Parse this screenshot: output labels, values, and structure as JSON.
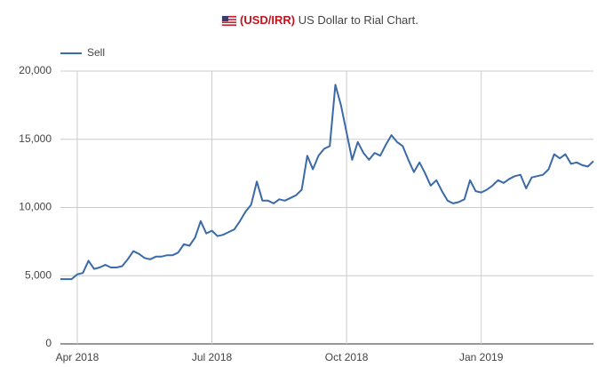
{
  "chart_data": {
    "type": "line",
    "title_code": "(USD/IRR)",
    "title": "US Dollar to Rial Chart.",
    "categories": [
      null,
      null,
      null,
      "Apr 2018",
      null,
      null,
      null,
      null,
      null,
      null,
      null,
      null,
      null,
      null,
      null,
      null,
      null,
      null,
      null,
      null,
      null,
      null,
      null,
      null,
      null,
      null,
      null,
      "Jul 2018",
      null,
      null,
      null,
      null,
      null,
      null,
      null,
      null,
      null,
      null,
      null,
      null,
      null,
      null,
      null,
      null,
      null,
      null,
      null,
      null,
      null,
      null,
      null,
      "Oct 2018",
      null,
      null,
      null,
      null,
      null,
      null,
      null,
      null,
      null,
      null,
      null,
      null,
      null,
      null,
      null,
      null,
      null,
      null,
      null,
      null,
      null,
      null,
      null,
      "Jan 2019",
      null,
      null,
      null,
      null,
      null,
      null,
      null,
      null,
      null,
      null,
      null,
      null,
      null,
      null,
      null,
      null,
      null,
      null,
      null,
      null
    ],
    "series": [
      {
        "name": "Sell",
        "color": "#3a6aa8",
        "values": [
          4750,
          4750,
          4750,
          5100,
          5200,
          6100,
          5500,
          5600,
          5800,
          5600,
          5600,
          5700,
          6200,
          6800,
          6600,
          6300,
          6200,
          6400,
          6400,
          6500,
          6500,
          6700,
          7300,
          7200,
          7800,
          9000,
          8100,
          8300,
          7900,
          8000,
          8200,
          8400,
          9000,
          9700,
          10200,
          11900,
          10500,
          10500,
          10300,
          10600,
          10500,
          10700,
          10900,
          11300,
          13800,
          12800,
          13800,
          14300,
          14500,
          19000,
          17500,
          15500,
          13500,
          14800,
          14000,
          13500,
          14000,
          13800,
          14600,
          15300,
          14800,
          14500,
          13500,
          12600,
          13300,
          12500,
          11600,
          12000,
          11200,
          10500,
          10300,
          10400,
          10600,
          12000,
          11200,
          11100,
          11300,
          11600,
          12000,
          11800,
          12100,
          12300,
          12400,
          11400,
          12200,
          12300,
          12400,
          12800,
          13900,
          13600,
          13900,
          13200,
          13300,
          13100,
          13000,
          13400
        ]
      }
    ],
    "ylim": [
      0,
      20000
    ],
    "yticks": [
      {
        "value": 0,
        "label": "0"
      },
      {
        "value": 5000,
        "label": "5,000"
      },
      {
        "value": 10000,
        "label": "10,000"
      },
      {
        "value": 15000,
        "label": "15,000"
      },
      {
        "value": 20000,
        "label": "20,000"
      }
    ],
    "grid": true
  }
}
